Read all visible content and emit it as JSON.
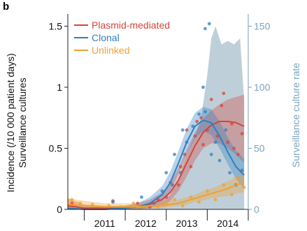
{
  "chart_data": {
    "type": "line",
    "panel_label": "b",
    "ylabel_left_line1": "Incidence (/10 000 patient days)",
    "ylabel_left_line2": "Surveillance cultures",
    "ylabel_right": "Surveillance culture rate",
    "x_tick_labels": [
      "2011",
      "2012",
      "2013",
      "2014"
    ],
    "x_range": [
      2010.6,
      2015.0
    ],
    "ylim_left": [
      0,
      1.6
    ],
    "ylim_right": [
      0,
      160
    ],
    "y_ticks_left": [
      0,
      0.5,
      1,
      1.5
    ],
    "y_ticks_right": [
      0,
      50,
      100,
      150
    ],
    "y_tick_labels_left": [
      "0",
      "0.5",
      "1",
      "1.5"
    ],
    "y_tick_labels_right": [
      "0",
      "50",
      "100",
      "150"
    ],
    "legend": [
      {
        "label": "Plasmid-mediated",
        "color": "#d4453b"
      },
      {
        "label": "Clonal",
        "color": "#2f7fc1"
      },
      {
        "label": "Unlinked",
        "color": "#f0a030"
      }
    ],
    "surveillance_rate": {
      "color": "#aabfcc",
      "x": [
        2010.6,
        2011.0,
        2011.5,
        2012.0,
        2012.3,
        2012.6,
        2012.9,
        2013.1,
        2013.3,
        2013.5,
        2013.7,
        2013.85,
        2014.0,
        2014.1,
        2014.2,
        2014.35,
        2014.5,
        2014.65,
        2014.8,
        2014.9
      ],
      "y": [
        0,
        0,
        0,
        0,
        1,
        3,
        6,
        12,
        25,
        45,
        60,
        75,
        110,
        140,
        150,
        135,
        138,
        135,
        140,
        90
      ]
    },
    "series": [
      {
        "name": "Plasmid-mediated",
        "color": "#d4453b",
        "x": [
          2010.6,
          2011.0,
          2011.5,
          2012.0,
          2012.3,
          2012.6,
          2012.9,
          2013.1,
          2013.3,
          2013.5,
          2013.7,
          2013.9,
          2014.1,
          2014.3,
          2014.5,
          2014.7,
          2014.9
        ],
        "y": [
          0.03,
          0.01,
          0.01,
          0.01,
          0.02,
          0.04,
          0.08,
          0.14,
          0.24,
          0.38,
          0.52,
          0.63,
          0.69,
          0.72,
          0.72,
          0.71,
          0.68
        ],
        "lower": [
          0.0,
          0.0,
          0.0,
          0.0,
          0.0,
          0.01,
          0.03,
          0.07,
          0.15,
          0.27,
          0.4,
          0.5,
          0.54,
          0.54,
          0.5,
          0.45,
          0.38
        ],
        "upper": [
          0.09,
          0.04,
          0.03,
          0.03,
          0.05,
          0.08,
          0.14,
          0.22,
          0.34,
          0.49,
          0.63,
          0.74,
          0.81,
          0.86,
          0.9,
          0.92,
          0.94
        ],
        "points": [
          [
            2010.7,
            0.05
          ],
          [
            2011.7,
            0.07
          ],
          [
            2012.3,
            0.05
          ],
          [
            2012.6,
            0.02
          ],
          [
            2012.8,
            0.08
          ],
          [
            2013.0,
            0.1
          ],
          [
            2013.1,
            0.22
          ],
          [
            2013.3,
            0.2
          ],
          [
            2013.35,
            0.35
          ],
          [
            2013.45,
            0.45
          ],
          [
            2013.5,
            0.65
          ],
          [
            2013.6,
            0.35
          ],
          [
            2013.7,
            0.6
          ],
          [
            2013.75,
            0.72
          ],
          [
            2013.85,
            0.75
          ],
          [
            2013.9,
            0.53
          ],
          [
            2014.0,
            0.65
          ],
          [
            2014.1,
            0.9
          ],
          [
            2014.25,
            0.6
          ],
          [
            2014.35,
            0.85
          ],
          [
            2014.4,
            0.95
          ],
          [
            2014.5,
            0.55
          ],
          [
            2014.6,
            0.7
          ],
          [
            2014.65,
            0.5
          ],
          [
            2014.75,
            0.45
          ],
          [
            2014.85,
            0.62
          ]
        ]
      },
      {
        "name": "Clonal",
        "color": "#2f7fc1",
        "x": [
          2010.6,
          2011.0,
          2011.5,
          2012.0,
          2012.3,
          2012.6,
          2012.9,
          2013.1,
          2013.3,
          2013.5,
          2013.7,
          2013.9,
          2014.1,
          2014.3,
          2014.5,
          2014.7,
          2014.9
        ],
        "y": [
          0.01,
          0.0,
          0.0,
          0.01,
          0.02,
          0.05,
          0.12,
          0.22,
          0.38,
          0.55,
          0.68,
          0.73,
          0.71,
          0.6,
          0.47,
          0.35,
          0.28
        ],
        "lower": [
          0.0,
          0.0,
          0.0,
          0.0,
          0.0,
          0.02,
          0.06,
          0.15,
          0.29,
          0.45,
          0.58,
          0.64,
          0.61,
          0.5,
          0.37,
          0.25,
          0.17
        ],
        "upper": [
          0.04,
          0.02,
          0.02,
          0.03,
          0.05,
          0.1,
          0.19,
          0.31,
          0.48,
          0.66,
          0.79,
          0.84,
          0.82,
          0.72,
          0.59,
          0.48,
          0.41
        ],
        "points": [
          [
            2011.7,
            0.06
          ],
          [
            2012.4,
            0.1
          ],
          [
            2012.7,
            0.05
          ],
          [
            2012.9,
            0.15
          ],
          [
            2013.0,
            0.3
          ],
          [
            2013.15,
            0.2
          ],
          [
            2013.2,
            0.45
          ],
          [
            2013.35,
            0.3
          ],
          [
            2013.4,
            0.65
          ],
          [
            2013.5,
            0.55
          ],
          [
            2013.65,
            0.68
          ],
          [
            2013.8,
            0.78
          ],
          [
            2013.9,
            1.0
          ],
          [
            2013.95,
            0.8
          ],
          [
            2014.1,
            0.45
          ],
          [
            2014.2,
            0.55
          ],
          [
            2014.3,
            0.4
          ],
          [
            2014.45,
            0.65
          ],
          [
            2014.55,
            0.3
          ],
          [
            2014.7,
            0.2
          ],
          [
            2014.85,
            0.32
          ],
          [
            2013.95,
            1.48
          ],
          [
            2014.05,
            1.52
          ]
        ]
      },
      {
        "name": "Unlinked",
        "color": "#f0a030",
        "x": [
          2010.6,
          2011.0,
          2011.5,
          2012.0,
          2012.3,
          2012.6,
          2012.9,
          2013.1,
          2013.3,
          2013.5,
          2013.7,
          2013.9,
          2014.1,
          2014.3,
          2014.5,
          2014.7,
          2014.9
        ],
        "y": [
          0.04,
          0.03,
          0.02,
          0.02,
          0.02,
          0.03,
          0.03,
          0.04,
          0.05,
          0.07,
          0.09,
          0.11,
          0.13,
          0.15,
          0.17,
          0.2,
          0.22
        ],
        "lower": [
          0.0,
          0.0,
          0.0,
          0.0,
          0.0,
          0.01,
          0.01,
          0.02,
          0.03,
          0.04,
          0.06,
          0.07,
          0.09,
          0.1,
          0.11,
          0.13,
          0.14
        ],
        "upper": [
          0.09,
          0.07,
          0.05,
          0.05,
          0.05,
          0.05,
          0.06,
          0.07,
          0.08,
          0.1,
          0.12,
          0.15,
          0.17,
          0.2,
          0.23,
          0.27,
          0.3
        ],
        "points": [
          [
            2010.7,
            0.08
          ],
          [
            2010.9,
            0.05
          ],
          [
            2011.2,
            0.04
          ],
          [
            2011.6,
            0.03
          ],
          [
            2011.9,
            0.02
          ],
          [
            2012.2,
            0.05
          ],
          [
            2012.5,
            0.04
          ],
          [
            2012.8,
            0.02
          ],
          [
            2013.0,
            0.05
          ],
          [
            2013.2,
            0.08
          ],
          [
            2013.4,
            0.03
          ],
          [
            2013.6,
            0.1
          ],
          [
            2013.8,
            0.06
          ],
          [
            2014.0,
            0.15
          ],
          [
            2014.2,
            0.08
          ],
          [
            2014.4,
            0.2
          ],
          [
            2014.6,
            0.12
          ],
          [
            2014.75,
            0.25
          ],
          [
            2014.9,
            0.18
          ]
        ]
      }
    ]
  }
}
